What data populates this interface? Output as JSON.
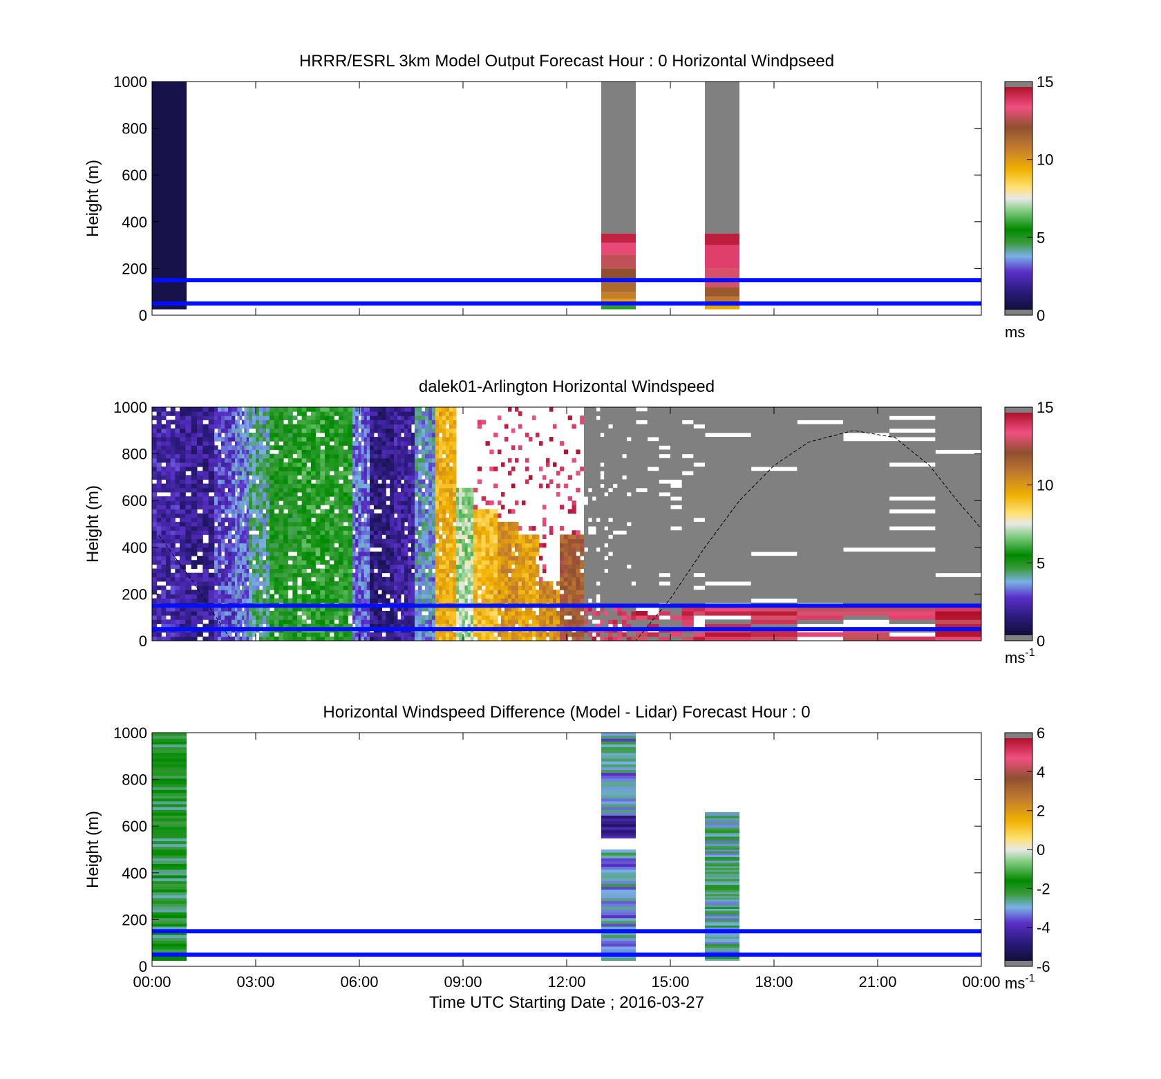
{
  "figure": {
    "xlabel": "Time UTC  Starting Date ; 2016-03-27",
    "x_tick_labels": [
      "00:00",
      "03:00",
      "06:00",
      "09:00",
      "12:00",
      "15:00",
      "18:00",
      "21:00",
      "00:00"
    ]
  },
  "chart_data": [
    {
      "type": "heatmap",
      "title": "HRRR/ESRL 3km Model Output   Forecast Hour : 0 Horizontal Windpseed",
      "ylabel": "Height (m)",
      "xlim": [
        0,
        24
      ],
      "ylim": [
        0,
        1000
      ],
      "y_tick_labels": [
        "0",
        "200",
        "400",
        "600",
        "800",
        "1000"
      ],
      "colorbar": {
        "range": [
          0,
          15
        ],
        "ticks": [
          "0",
          "5",
          "10",
          "15"
        ],
        "unit": "ms",
        "unit_exp": ""
      },
      "reference_lines_m": [
        150,
        50
      ],
      "data_columns": [
        {
          "x_hours": [
            0,
            1
          ],
          "y_range_m": [
            25,
            1000
          ],
          "speed_ms": 0.3
        },
        {
          "x_hours": [
            13,
            14
          ],
          "segments": [
            {
              "y_m": [
                25,
                40
              ],
              "speed_ms": 5.8
            },
            {
              "y_m": [
                40,
                70
              ],
              "speed_ms": 9.8
            },
            {
              "y_m": [
                70,
                100
              ],
              "speed_ms": 10.8
            },
            {
              "y_m": [
                100,
                140
              ],
              "speed_ms": 11.5
            },
            {
              "y_m": [
                140,
                200
              ],
              "speed_ms": 12.3
            },
            {
              "y_m": [
                200,
                260
              ],
              "speed_ms": 13.0
            },
            {
              "y_m": [
                260,
                310
              ],
              "speed_ms": 13.8
            },
            {
              "y_m": [
                310,
                350
              ],
              "speed_ms": 14.6
            },
            {
              "y_m": [
                350,
                1000
              ],
              "speed_ms": -1
            }
          ]
        },
        {
          "x_hours": [
            16,
            17
          ],
          "segments": [
            {
              "y_m": [
                25,
                40
              ],
              "speed_ms": 9.6
            },
            {
              "y_m": [
                40,
                80
              ],
              "speed_ms": 11.0
            },
            {
              "y_m": [
                80,
                120
              ],
              "speed_ms": 12.0
            },
            {
              "y_m": [
                120,
                200
              ],
              "speed_ms": 13.3
            },
            {
              "y_m": [
                200,
                300
              ],
              "speed_ms": 14.0
            },
            {
              "y_m": [
                300,
                350
              ],
              "speed_ms": 14.7
            },
            {
              "y_m": [
                350,
                1000
              ],
              "speed_ms": -1
            }
          ]
        }
      ]
    },
    {
      "type": "heatmap",
      "title": "dalek01-Arlington  Horizontal Windspeed",
      "ylabel": "Height (m)",
      "xlim": [
        0,
        24
      ],
      "ylim": [
        0,
        1000
      ],
      "y_tick_labels": [
        "0",
        "200",
        "400",
        "600",
        "800",
        "1000"
      ],
      "colorbar": {
        "range": [
          0,
          15
        ],
        "ticks": [
          "0",
          "5",
          "10",
          "15"
        ],
        "unit": "ms",
        "unit_exp": "-1"
      },
      "reference_lines_m": [
        150,
        50
      ],
      "mixing_height_curve": [
        [
          0.2,
          450
        ],
        [
          1.2,
          250
        ],
        [
          2.3,
          0
        ],
        [
          14.0,
          0
        ],
        [
          15.0,
          180
        ],
        [
          16.0,
          400
        ],
        [
          17.0,
          600
        ],
        [
          18.0,
          750
        ],
        [
          19.0,
          850
        ],
        [
          20.3,
          900
        ],
        [
          21.5,
          870
        ],
        [
          22.5,
          750
        ],
        [
          23.3,
          600
        ],
        [
          24,
          480
        ]
      ],
      "time_blocks": [
        {
          "x_hours": [
            0,
            0.8
          ],
          "speed_ms": 2.0,
          "top_m": 1000
        },
        {
          "x_hours": [
            0.8,
            1.8
          ],
          "speed_ms": 1.6,
          "top_m": 1000
        },
        {
          "x_hours": [
            1.8,
            2.4
          ],
          "speed_ms": 2.6,
          "top_m": 1000
        },
        {
          "x_hours": [
            2.4,
            2.8
          ],
          "speed_ms": 3.2,
          "top_m": 1000
        },
        {
          "x_hours": [
            2.8,
            3.4
          ],
          "speed_ms": 4.0,
          "top_m": 1000
        },
        {
          "x_hours": [
            3.4,
            4.2
          ],
          "speed_ms": 5.2,
          "top_m": 1000
        },
        {
          "x_hours": [
            4.2,
            5.0
          ],
          "speed_ms": 5.6,
          "top_m": 1000
        },
        {
          "x_hours": [
            5.0,
            5.8
          ],
          "speed_ms": 5.4,
          "top_m": 1000
        },
        {
          "x_hours": [
            5.8,
            6.3
          ],
          "speed_ms": 3.0,
          "top_m": 1000
        },
        {
          "x_hours": [
            6.3,
            7.0
          ],
          "speed_ms": 1.3,
          "top_m": 1000
        },
        {
          "x_hours": [
            7.0,
            7.6
          ],
          "speed_ms": 1.8,
          "top_m": 1000
        },
        {
          "x_hours": [
            7.6,
            8.2
          ],
          "speed_ms": 3.5,
          "top_m": 1000
        },
        {
          "x_hours": [
            8.2,
            8.8
          ],
          "speed_ms": 9.5,
          "top_m": 1000
        },
        {
          "x_hours": [
            8.8,
            9.3
          ],
          "speed_ms": 7.0,
          "top_m": 650
        },
        {
          "x_hours": [
            9.3,
            10.0
          ],
          "speed_ms": 9.2,
          "top_m": 550
        },
        {
          "x_hours": [
            10.0,
            10.6
          ],
          "speed_ms": 10.2,
          "top_m": 500
        },
        {
          "x_hours": [
            10.6,
            11.2
          ],
          "speed_ms": 9.8,
          "top_m": 450
        },
        {
          "x_hours": [
            11.2,
            11.8
          ],
          "speed_ms": 10.4,
          "top_m": 250
        },
        {
          "x_hours": [
            11.8,
            12.5
          ],
          "speed_ms": 12.0,
          "top_m": 450
        },
        {
          "x_hours": [
            12.5,
            13.2
          ],
          "speed_ms": -1,
          "top_m": 1000
        },
        {
          "x_hours": [
            13.2,
            14.0
          ],
          "speed_ms": -1,
          "top_m": 1000
        },
        {
          "x_hours": [
            14.0,
            16.0
          ],
          "speed_ms": -1,
          "top_m": 1000
        },
        {
          "x_hours": [
            16.0,
            24.0
          ],
          "speed_ms": -1,
          "top_m": 1000
        }
      ]
    },
    {
      "type": "heatmap",
      "title": "Horizontal Windspeed Difference (Model - Lidar) Forecast Hour : 0",
      "ylabel": "Height (m)",
      "xlim": [
        0,
        24
      ],
      "ylim": [
        0,
        1000
      ],
      "y_tick_labels": [
        "0",
        "200",
        "400",
        "600",
        "800",
        "1000"
      ],
      "colorbar": {
        "range": [
          -6,
          6
        ],
        "ticks": [
          "-6",
          "-4",
          "-2",
          "0",
          "2",
          "4",
          "6"
        ],
        "unit": "ms",
        "unit_exp": "-1"
      },
      "reference_lines_m": [
        150,
        50
      ],
      "data_columns": [
        {
          "x_hours": [
            0,
            1
          ],
          "y_range_m": [
            25,
            1000
          ],
          "diff_ms": -2.2
        },
        {
          "x_hours": [
            13,
            14
          ],
          "y_range_m": [
            25,
            1000
          ],
          "diff_ms": -3.2,
          "low_band_m": [
            540,
            650
          ],
          "low_band_diff_ms": -4.8
        },
        {
          "x_hours": [
            16,
            17
          ],
          "y_range_m": [
            25,
            660
          ],
          "diff_ms": -2.8
        }
      ]
    }
  ]
}
